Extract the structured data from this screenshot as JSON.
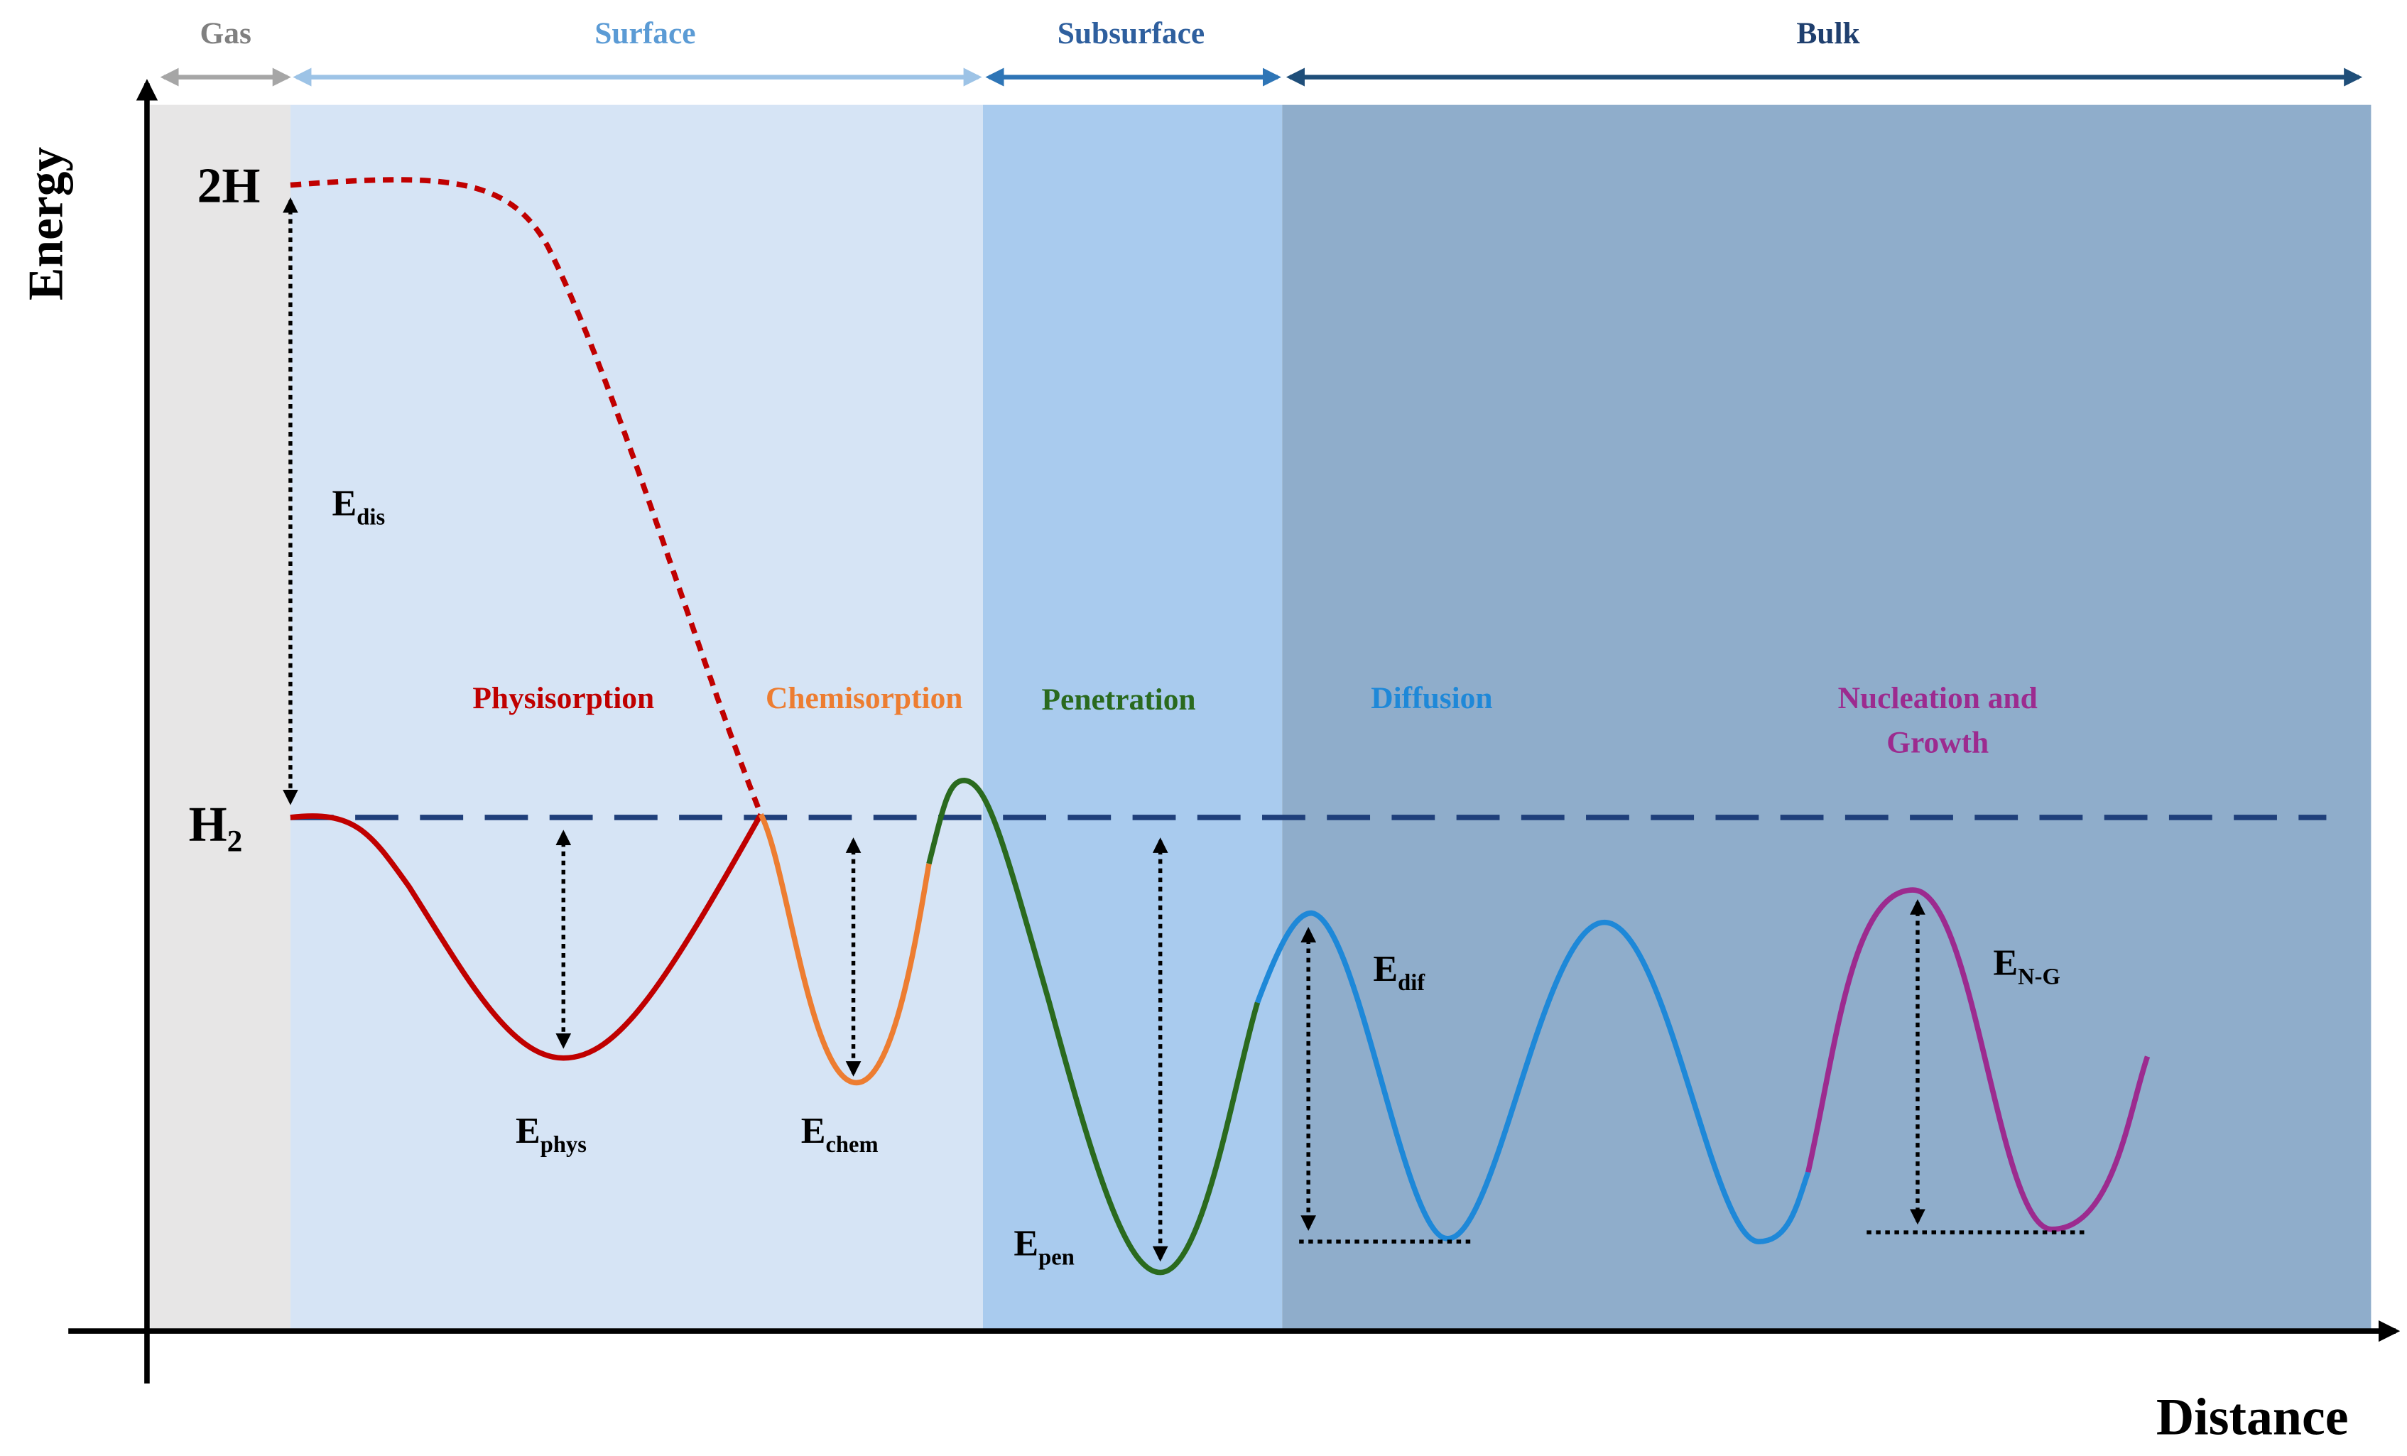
{
  "regions": {
    "gas": "Gas",
    "surface": "Surface",
    "subsurface": "Subsurface",
    "bulk": "Bulk"
  },
  "axes": {
    "y": "Energy",
    "x": "Distance"
  },
  "levels": {
    "upper": "2H",
    "lower": {
      "base": "H",
      "sub": "2"
    }
  },
  "processes": {
    "physisorption": "Physisorption",
    "chemisorption": "Chemisorption",
    "penetration": "Penetration",
    "diffusion": "Diffusion",
    "nucleation": [
      "Nucleation and",
      "Growth"
    ]
  },
  "energies": {
    "dis": {
      "base": "E",
      "sub": "dis"
    },
    "phys": {
      "base": "E",
      "sub": "phys"
    },
    "chem": {
      "base": "E",
      "sub": "chem"
    },
    "pen": {
      "base": "E",
      "sub": "pen"
    },
    "dif": {
      "base": "E",
      "sub": "dif"
    },
    "ng": {
      "base": "E",
      "sub": "N-G"
    }
  }
}
